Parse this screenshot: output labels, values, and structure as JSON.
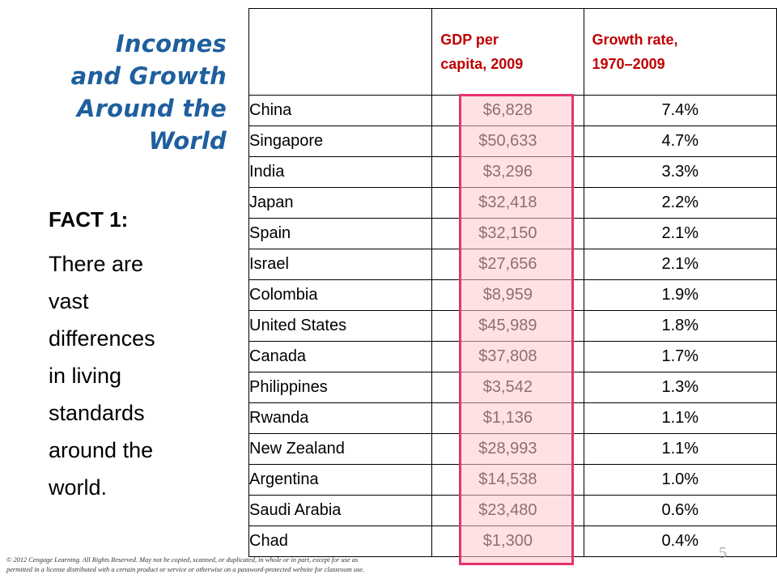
{
  "title": [
    "Incomes",
    "and Growth",
    "Around the",
    "World"
  ],
  "fact": {
    "heading": "FACT 1:",
    "lines": [
      "There are",
      "vast",
      "differences",
      "in living",
      "standards",
      "around the",
      "world."
    ]
  },
  "table": {
    "headers": [
      "",
      "GDP per capita, 2009",
      "Growth rate, 1970–2009"
    ],
    "header_lines": {
      "gdp": [
        "GDP per",
        "capita, 2009"
      ],
      "growth": [
        "Growth rate,",
        "1970–2009"
      ]
    },
    "rows": [
      [
        "China",
        "$6,828",
        "7.4%"
      ],
      [
        "Singapore",
        "$50,633",
        "4.7%"
      ],
      [
        "India",
        "$3,296",
        "3.3%"
      ],
      [
        "Japan",
        "$32,418",
        "2.2%"
      ],
      [
        "Spain",
        "$32,150",
        "2.1%"
      ],
      [
        "Israel",
        "$27,656",
        "2.1%"
      ],
      [
        "Colombia",
        "$8,959",
        "1.9%"
      ],
      [
        "United States",
        "$45,989",
        "1.8%"
      ],
      [
        "Canada",
        "$37,808",
        "1.7%"
      ],
      [
        "Philippines",
        "$3,542",
        "1.3%"
      ],
      [
        "Rwanda",
        "$1,136",
        "1.1%"
      ],
      [
        "New Zealand",
        "$28,993",
        "1.1%"
      ],
      [
        "Argentina",
        "$14,538",
        "1.0%"
      ],
      [
        "Saudi Arabia",
        "$23,480",
        "0.6%"
      ],
      [
        "Chad",
        "$1,300",
        "0.4%"
      ]
    ]
  },
  "page_number": "5",
  "copyright": [
    "© 2012 Cengage Learning. All Rights Reserved. May not be copied, scanned, or duplicated, in whole or in part, except for use as",
    "permitted in a license distributed with a certain product or service or otherwise on a password-protected website for classroom use."
  ],
  "colors": {
    "title": "#1f5f9e",
    "header_text": "#c00000",
    "highlight_border": "#e8336b",
    "highlight_fill": "#ffc8cd"
  }
}
